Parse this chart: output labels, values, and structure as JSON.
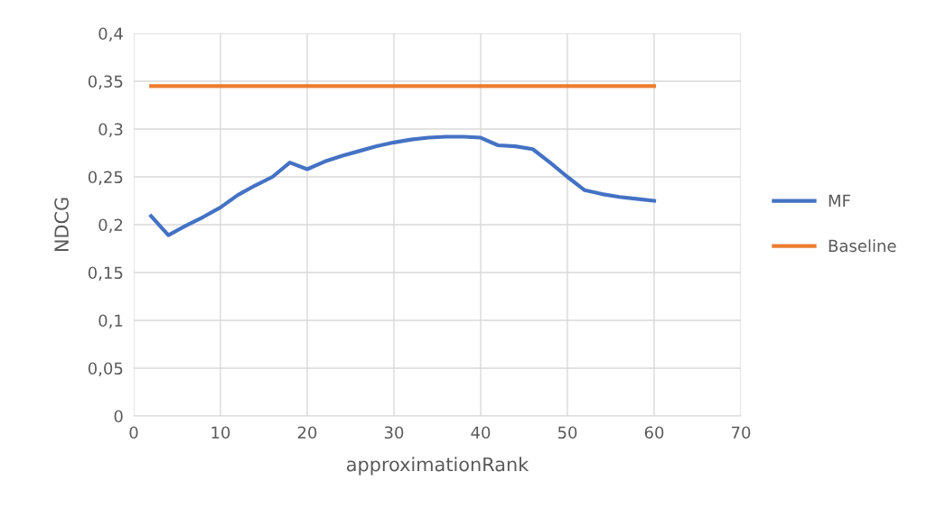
{
  "chart_data": {
    "type": "line",
    "xlabel": "approximationRank",
    "ylabel": "NDCG",
    "series": [
      {
        "name": "MF",
        "color": "#4472c4",
        "x": [
          2,
          4,
          6,
          8,
          10,
          12,
          14,
          16,
          18,
          20,
          22,
          24,
          26,
          28,
          30,
          32,
          34,
          36,
          38,
          40,
          42,
          44,
          46,
          48,
          50,
          52,
          54,
          56,
          58,
          60
        ],
        "values": [
          0.209,
          0.189,
          0.199,
          0.208,
          0.218,
          0.231,
          0.241,
          0.25,
          0.265,
          0.258,
          0.266,
          0.272,
          0.277,
          0.282,
          0.286,
          0.289,
          0.291,
          0.292,
          0.292,
          0.291,
          0.283,
          0.282,
          0.279,
          0.265,
          0.25,
          0.236,
          0.232,
          0.229,
          0.227,
          0.225
        ]
      },
      {
        "name": "Baseline",
        "color": "#ed7d31",
        "x": [
          2,
          60
        ],
        "values": [
          0.345,
          0.345
        ]
      }
    ],
    "xlim": [
      0,
      70
    ],
    "xticks": [
      0,
      10,
      20,
      30,
      40,
      50,
      60,
      70
    ],
    "ylim": [
      0,
      0.4
    ],
    "yticks": [
      0,
      {
        "value": 0.05,
        "label": "0,05"
      },
      {
        "value": 0.1,
        "label": "0,1"
      },
      {
        "value": 0.15,
        "label": "0,15"
      },
      {
        "value": 0.2,
        "label": "0,2"
      },
      {
        "value": 0.25,
        "label": "0,25"
      },
      {
        "value": 0.3,
        "label": "0,3"
      },
      {
        "value": 0.35,
        "label": "0,35"
      },
      {
        "value": 0.4,
        "label": "0,4"
      }
    ],
    "grid": true,
    "legend": "right",
    "marker": "none",
    "line_style": "solid"
  }
}
